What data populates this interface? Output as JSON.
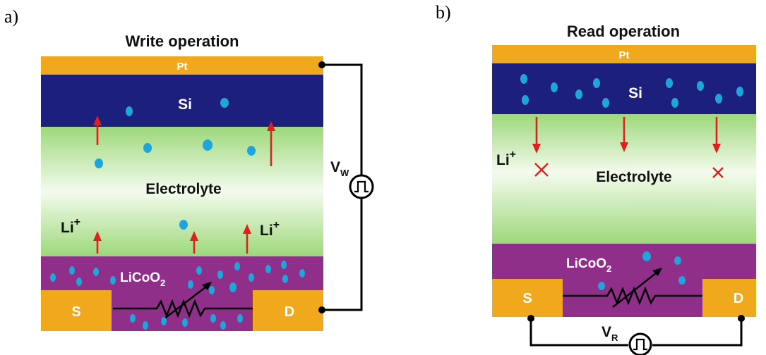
{
  "panel_a": {
    "label": "a)",
    "title": "Write operation",
    "top_electrode": "Pt",
    "top_layer": "Si",
    "middle_layer": "Electrolyte",
    "ion_left": "Li",
    "ion_right": "Li",
    "ion_sup": "+",
    "bottom_layer": "LiCoO",
    "bottom_sub": "2",
    "source": "S",
    "drain": "D",
    "voltage": "V",
    "voltage_sub": "W"
  },
  "panel_b": {
    "label": "b)",
    "title": "Read operation",
    "top_electrode": "Pt",
    "top_layer": "Si",
    "middle_layer": "Electrolyte",
    "ion": "Li",
    "ion_sup": "+",
    "bottom_layer": "LiCoO",
    "bottom_sub": "2",
    "source": "S",
    "drain": "D",
    "voltage": "V",
    "voltage_sub": "R"
  },
  "colors": {
    "pt": "#f0a81c",
    "si": "#1d1f7c",
    "electrolyte_edge": "#9dd87a",
    "electrolyte_center": "#f4fbee",
    "licoo2": "#8f2f8a",
    "contact": "#f0a81c",
    "ion": "#1ea6dc",
    "arrow": "#e0201c"
  }
}
